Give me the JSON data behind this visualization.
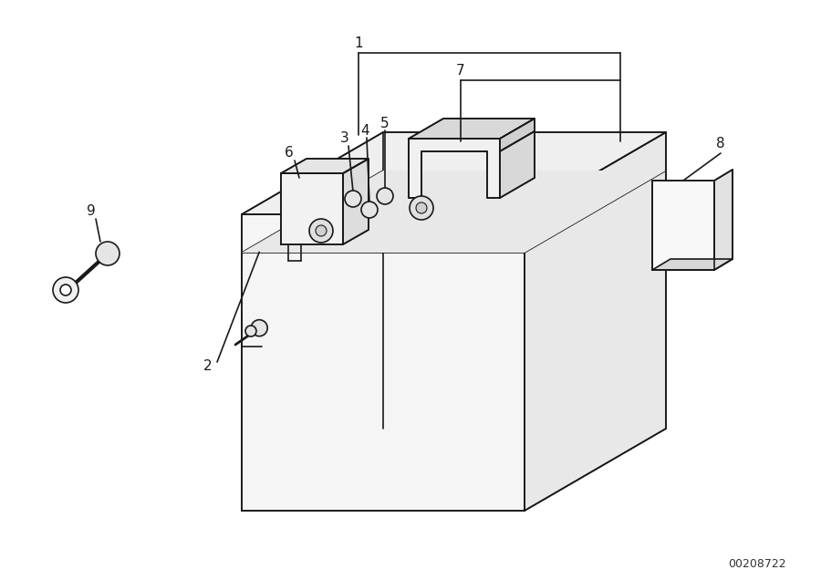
{
  "background_color": "#ffffff",
  "line_color": "#1a1a1a",
  "diagram_id": "00208722"
}
